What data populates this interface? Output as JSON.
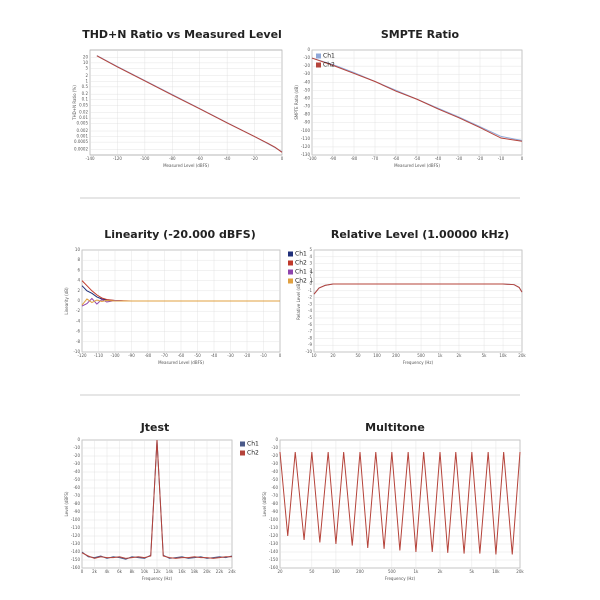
{
  "chart_data": [
    {
      "type": "line",
      "title": "THD+N Ratio vs Measured Level",
      "xlabel": "Measured Level (dBFS)",
      "ylabel": "THD+N Ratio (%)",
      "yscale": "log",
      "grid": true,
      "x": [
        -135,
        -120,
        -100,
        -80,
        -60,
        -40,
        -20,
        -10,
        -5,
        0
      ],
      "series": [
        {
          "color": "#8fa8d8",
          "values": [
            25,
            6.3,
            1.1,
            0.19,
            0.033,
            0.0057,
            0.001,
            0.0004,
            0.00025,
            0.00015
          ]
        },
        {
          "color": "#b5433a",
          "values": [
            24,
            6,
            1.05,
            0.18,
            0.032,
            0.0055,
            0.001,
            0.00042,
            0.00026,
            0.00014
          ]
        }
      ],
      "xlim": [
        -140,
        0
      ],
      "xticks": [
        -140,
        -120,
        -100,
        -80,
        -60,
        -40,
        -20,
        0
      ],
      "ylim": [
        0.0001,
        50
      ],
      "yticks": [
        20,
        10,
        5,
        2,
        1,
        0.5,
        0.2,
        0.1,
        0.05,
        0.02,
        0.01,
        0.005,
        0.002,
        0.001,
        0.0005,
        0.0002
      ]
    },
    {
      "type": "line",
      "title": "SMPTE Ratio",
      "xlabel": "Measured Level (dBFS)",
      "ylabel": "SMPTE Ratio (dB)",
      "grid": true,
      "legend": "upper left",
      "x": [
        -100,
        -90,
        -80,
        -70,
        -60,
        -50,
        -40,
        -30,
        -20,
        -10,
        0
      ],
      "series": [
        {
          "name": "Ch1",
          "color": "#8fa8d8",
          "values": [
            -10,
            -18,
            -28,
            -39,
            -50,
            -61,
            -72,
            -83,
            -95,
            -107,
            -112
          ]
        },
        {
          "name": "Ch2",
          "color": "#b5433a",
          "values": [
            -10,
            -19,
            -29,
            -39,
            -51,
            -61,
            -73,
            -84,
            -96,
            -109,
            -113
          ]
        }
      ],
      "xlim": [
        -100,
        0
      ],
      "xticks": [
        -100,
        -90,
        -80,
        -70,
        -60,
        -50,
        -40,
        -30,
        -20,
        -10,
        0
      ],
      "ylim": [
        -130,
        0
      ],
      "yticks": [
        0,
        -10,
        -20,
        -30,
        -40,
        -50,
        -60,
        -70,
        -80,
        -90,
        -100,
        -110,
        -120,
        -130
      ]
    },
    {
      "type": "line",
      "title": "Linearity (-20.000 dBFS)",
      "xlabel": "Measured Level (dBFS)",
      "ylabel": "Linearity (dB)",
      "grid": true,
      "legend": "right",
      "x": [
        -120,
        -117,
        -114,
        -111,
        -108,
        -105,
        -100,
        -95,
        -90,
        -80,
        -60,
        -40,
        -20,
        0
      ],
      "series": [
        {
          "name": "Ch1",
          "color": "#1f2f7a",
          "values": [
            3,
            2,
            1.5,
            0.8,
            0.4,
            0.2,
            0.1,
            0,
            0,
            0,
            0,
            0,
            0,
            0
          ]
        },
        {
          "name": "Ch2",
          "color": "#c0392b",
          "values": [
            4,
            3,
            2,
            1.2,
            0.6,
            0.3,
            0.1,
            0.05,
            0,
            0,
            0,
            0,
            0,
            0
          ]
        },
        {
          "name": "Ch1 ↓",
          "color": "#8e44ad",
          "values": [
            -1,
            -0.5,
            0.5,
            -0.6,
            0.3,
            -0.2,
            0.1,
            0,
            0,
            0,
            0,
            0,
            0,
            0
          ]
        },
        {
          "name": "Ch2 ↓",
          "color": "#e0a040",
          "values": [
            -0.8,
            0.4,
            -0.3,
            0.2,
            -0.1,
            0.1,
            0,
            0,
            0,
            0,
            0,
            0,
            0,
            0
          ]
        }
      ],
      "xlim": [
        -120,
        0
      ],
      "xticks": [
        -120,
        -110,
        -100,
        -90,
        -80,
        -70,
        -60,
        -50,
        -40,
        -30,
        -20,
        -10,
        0
      ],
      "ylim": [
        -10,
        10
      ],
      "yticks": [
        10,
        8,
        6,
        4,
        2,
        0,
        -2,
        -4,
        -6,
        -8,
        -10
      ]
    },
    {
      "type": "line",
      "title": "Relative Level (1.00000 kHz)",
      "xlabel": "Frequency (Hz)",
      "ylabel": "Relative Level (dB)",
      "xscale": "log",
      "grid": true,
      "x": [
        10,
        12,
        15,
        20,
        50,
        100,
        1000,
        10000,
        15000,
        18000,
        20000
      ],
      "series": [
        {
          "color": "#8fa8d8",
          "values": [
            -1.5,
            -0.6,
            -0.2,
            0,
            0,
            0,
            0,
            0,
            -0.1,
            -0.5,
            -1.2
          ]
        },
        {
          "color": "#b5433a",
          "values": [
            -1.5,
            -0.6,
            -0.2,
            0,
            0,
            0,
            0,
            0,
            -0.1,
            -0.5,
            -1.2
          ]
        }
      ],
      "xlim": [
        10,
        20000
      ],
      "xticks": [
        10,
        20,
        50,
        100,
        200,
        500,
        {
          "value": 1000,
          "label": "1k"
        },
        {
          "value": 2000,
          "label": "2k"
        },
        {
          "value": 5000,
          "label": "5k"
        },
        {
          "value": 10000,
          "label": "10k"
        },
        {
          "value": 20000,
          "label": "20k"
        }
      ],
      "ylim": [
        -10,
        5
      ],
      "yticks": [
        5,
        4,
        3,
        2,
        1,
        0,
        -1,
        -2,
        -3,
        -4,
        -5,
        -6,
        -7,
        -8,
        -9,
        -10
      ]
    },
    {
      "type": "line",
      "title": "Jtest",
      "xlabel": "Frequency (Hz)",
      "ylabel": "Level (dBFS)",
      "grid": true,
      "legend": "right",
      "x": [
        0,
        1000,
        2000,
        3000,
        4000,
        5000,
        6000,
        7000,
        8000,
        9000,
        10000,
        11000,
        12000,
        13000,
        14000,
        15000,
        16000,
        17000,
        18000,
        19000,
        20000,
        21000,
        22000,
        23000,
        24000
      ],
      "series": [
        {
          "name": "Ch1",
          "color": "#4a5a8a",
          "values": [
            -140,
            -146,
            -147,
            -145,
            -148,
            -146,
            -147,
            -149,
            -146,
            -147,
            -148,
            -144,
            0,
            -144,
            -148,
            -147,
            -146,
            -148,
            -147,
            -146,
            -148,
            -147,
            -146,
            -147,
            -145
          ]
        },
        {
          "name": "Ch2",
          "color": "#b5433a",
          "values": [
            -141,
            -145,
            -148,
            -146,
            -147,
            -147,
            -146,
            -148,
            -147,
            -146,
            -147,
            -145,
            0,
            -145,
            -147,
            -148,
            -147,
            -147,
            -146,
            -147,
            -147,
            -148,
            -147,
            -146,
            -146
          ]
        }
      ],
      "xlim": [
        0,
        24000
      ],
      "xticks": [
        0,
        {
          "value": 2000,
          "label": "2k"
        },
        {
          "value": 4000,
          "label": "4k"
        },
        {
          "value": 6000,
          "label": "6k"
        },
        {
          "value": 8000,
          "label": "8k"
        },
        {
          "value": 10000,
          "label": "10k"
        },
        {
          "value": 12000,
          "label": "12k"
        },
        {
          "value": 14000,
          "label": "14k"
        },
        {
          "value": 16000,
          "label": "16k"
        },
        {
          "value": 18000,
          "label": "18k"
        },
        {
          "value": 20000,
          "label": "20k"
        },
        {
          "value": 22000,
          "label": "22k"
        },
        {
          "value": 24000,
          "label": "24k"
        }
      ],
      "ylim": [
        -160,
        0
      ],
      "yticks": [
        0,
        -10,
        -20,
        -30,
        -40,
        -50,
        -60,
        -70,
        -80,
        -90,
        -100,
        -110,
        -120,
        -130,
        -140,
        -150,
        -160
      ]
    },
    {
      "type": "line",
      "title": "Multitone",
      "xlabel": "Frequency (Hz)",
      "ylabel": "Level (dBFS)",
      "xscale": "log",
      "grid": true,
      "x": [
        20,
        25,
        31,
        40,
        50,
        63,
        80,
        100,
        125,
        160,
        200,
        250,
        315,
        400,
        500,
        630,
        800,
        1000,
        1250,
        1600,
        2000,
        2500,
        3150,
        4000,
        5000,
        6300,
        8000,
        10000,
        12500,
        16000,
        20000
      ],
      "series": [
        {
          "color": "#b5433a",
          "values": [
            -15,
            -120,
            -15,
            -125,
            -15,
            -128,
            -15,
            -130,
            -15,
            -132,
            -15,
            -135,
            -15,
            -136,
            -15,
            -138,
            -15,
            -140,
            -15,
            -140,
            -15,
            -141,
            -15,
            -142,
            -15,
            -142,
            -15,
            -143,
            -15,
            -143,
            -15
          ]
        }
      ],
      "xlim": [
        20,
        20000
      ],
      "xticks": [
        20,
        50,
        100,
        200,
        500,
        {
          "value": 1000,
          "label": "1k"
        },
        {
          "value": 2000,
          "label": "2k"
        },
        {
          "value": 5000,
          "label": "5k"
        },
        {
          "value": 10000,
          "label": "10k"
        },
        {
          "value": 20000,
          "label": "20k"
        }
      ],
      "ylim": [
        -160,
        0
      ],
      "yticks": [
        0,
        -10,
        -20,
        -30,
        -40,
        -50,
        -60,
        -70,
        -80,
        -90,
        -100,
        -110,
        -120,
        -130,
        -140,
        -150,
        -160
      ]
    }
  ]
}
